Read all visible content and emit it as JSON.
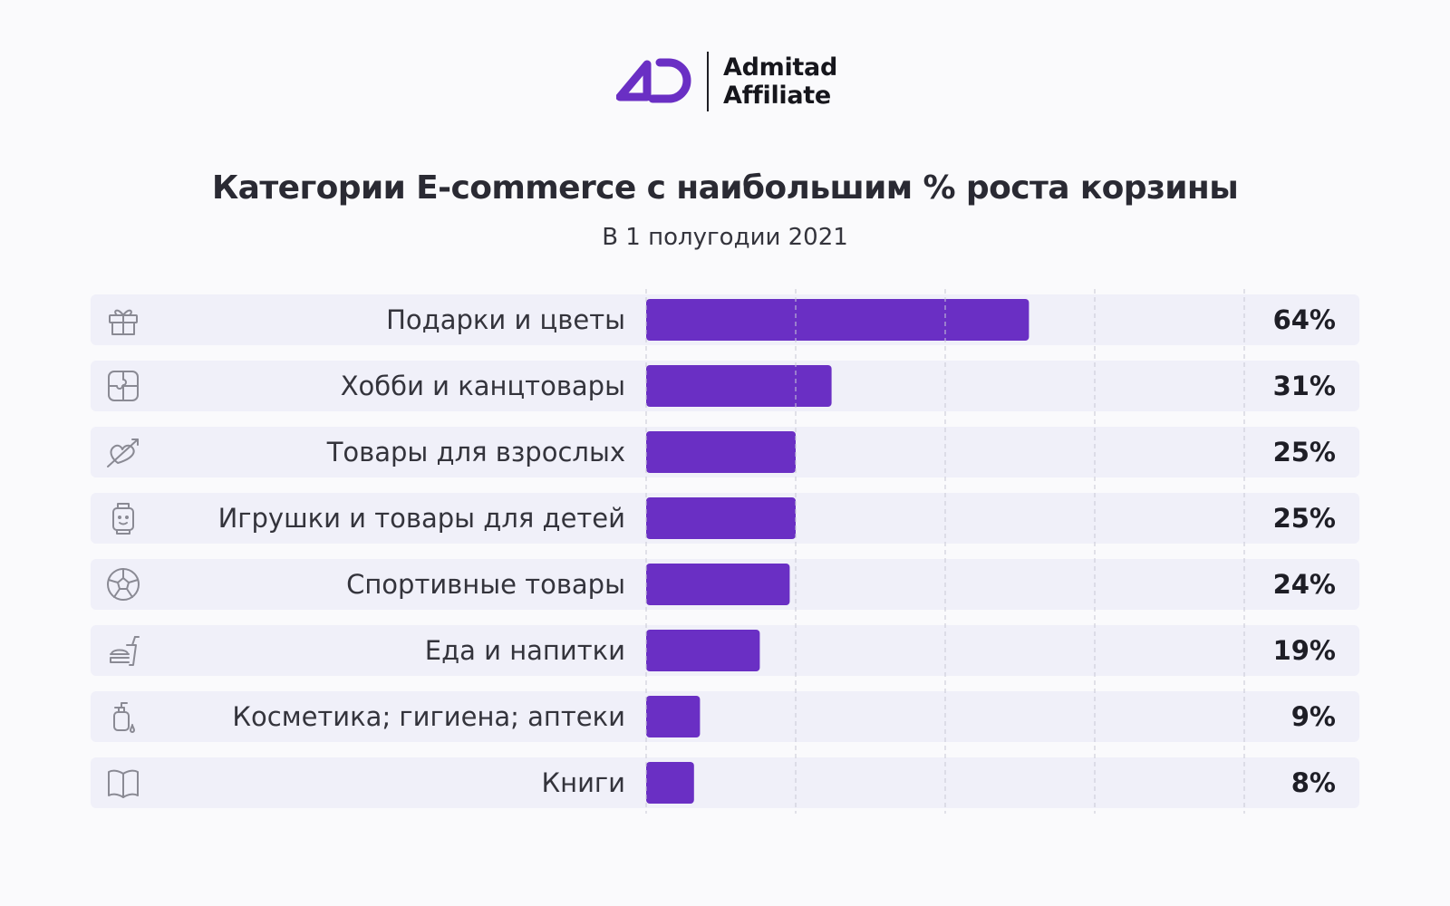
{
  "brand": {
    "line1": "Admitad",
    "line2": "Affiliate",
    "accent_color": "#6a2fc4"
  },
  "chart_data": {
    "type": "bar",
    "orientation": "horizontal",
    "title": "Категории E-commerce с наибольшим % роста корзины",
    "subtitle": "В 1 полугодии 2021",
    "categories": [
      "Подарки и цветы",
      "Хобби и канцтовары",
      "Товары для взрослых",
      "Игрушки и товары для детей",
      "Спортивные товары",
      "Еда и напитки",
      "Косметика; гигиена; аптеки",
      "Книги"
    ],
    "values": [
      64,
      31,
      25,
      25,
      24,
      19,
      9,
      8
    ],
    "value_labels": [
      "64%",
      "31%",
      "25%",
      "25%",
      "24%",
      "19%",
      "9%",
      "8%"
    ],
    "icons": [
      "gift-icon",
      "puzzle-icon",
      "heart-arrow-icon",
      "toy-icon",
      "ball-icon",
      "food-drink-icon",
      "soap-icon",
      "book-icon"
    ],
    "xlim": [
      0,
      100
    ],
    "grid_values": [
      0,
      25,
      50,
      75,
      100
    ],
    "grid": true,
    "bar_color": "#6a2fc4",
    "xlabel": "",
    "ylabel": ""
  }
}
